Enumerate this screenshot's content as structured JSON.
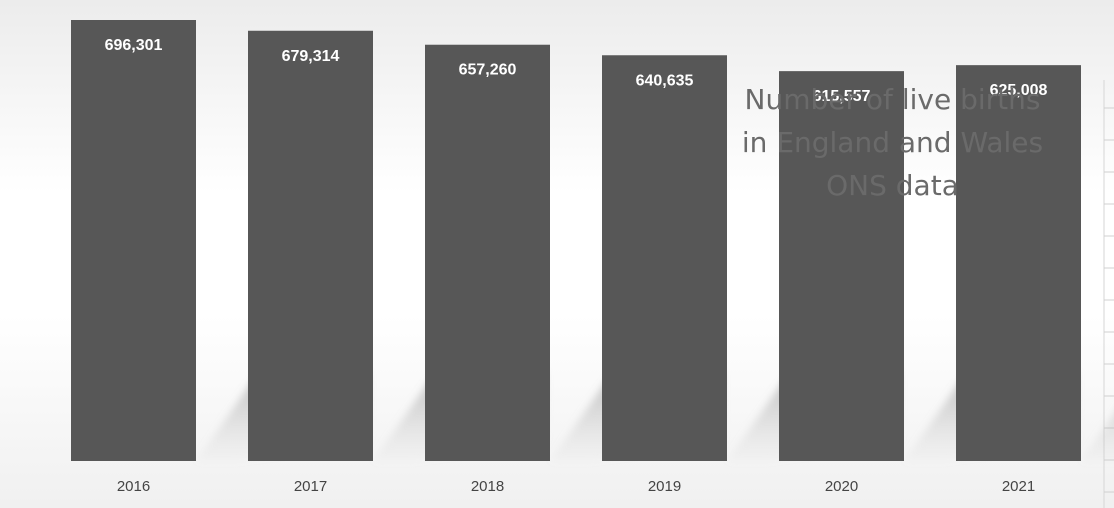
{
  "chart_data": {
    "type": "bar",
    "title_lines": [
      "Number of live births",
      "in England and Wales",
      "ONS data"
    ],
    "categories": [
      "2016",
      "2017",
      "2018",
      "2019",
      "2020",
      "2021"
    ],
    "values": [
      696301,
      679314,
      657260,
      640635,
      615557,
      625008
    ],
    "value_labels": [
      "696,301",
      "679,314",
      "657,260",
      "640,635",
      "615,557",
      "625,008"
    ],
    "xlabel": "",
    "ylabel": "",
    "grid": false,
    "legend": "none",
    "bar_color": "#575757",
    "value_label_color": "#ffffff",
    "tick_label_color": "#444444",
    "title_color": "#6a6a6a"
  }
}
